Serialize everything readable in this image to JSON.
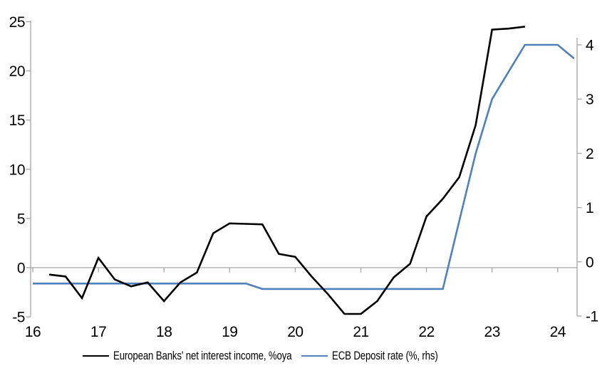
{
  "chart_data": {
    "type": "line",
    "title": "",
    "grid": "none",
    "legend_position": "bottom",
    "x_axis": {
      "tick_labels": [
        "16",
        "17",
        "18",
        "19",
        "20",
        "21",
        "22",
        "23",
        "24"
      ],
      "tick_values": [
        16,
        17,
        18,
        19,
        20,
        21,
        22,
        23,
        24
      ],
      "range": [
        15.95,
        24.3
      ]
    },
    "y_axis_left": {
      "tick_labels": [
        "-5",
        "0",
        "5",
        "10",
        "15",
        "20",
        "25"
      ],
      "tick_values": [
        -5,
        0,
        5,
        10,
        15,
        20,
        25
      ],
      "range": [
        -5,
        25
      ],
      "zero_line": true
    },
    "y_axis_right": {
      "tick_labels": [
        "-1",
        "0",
        "1",
        "2",
        "3",
        "4"
      ],
      "tick_values": [
        -1,
        0,
        1,
        2,
        3,
        4
      ],
      "range": [
        -1,
        4.5
      ]
    },
    "series": [
      {
        "name": "European Banks' net interest income, %oya",
        "axis": "left",
        "color": "#000000",
        "x": [
          16.25,
          16.5,
          16.75,
          17.0,
          17.25,
          17.5,
          17.75,
          18.0,
          18.25,
          18.5,
          18.75,
          19.0,
          19.25,
          19.5,
          19.75,
          20.0,
          20.25,
          20.5,
          20.75,
          21.0,
          21.25,
          21.5,
          21.75,
          22.0,
          22.25,
          22.5,
          22.75,
          23.0,
          23.25,
          23.5
        ],
        "values": [
          -0.7,
          -0.9,
          -3.1,
          1.0,
          -1.2,
          -1.9,
          -1.5,
          -3.4,
          -1.5,
          -0.5,
          3.5,
          4.5,
          4.45,
          4.4,
          1.4,
          1.1,
          -0.9,
          -2.7,
          -4.7,
          -4.7,
          -3.4,
          -1.0,
          0.4,
          5.2,
          7.0,
          9.2,
          14.5,
          24.2,
          24.3,
          24.5
        ]
      },
      {
        "name": "ECB Deposit rate (%, rhs)",
        "axis": "right",
        "color": "#4f81bd",
        "x": [
          16.0,
          16.25,
          16.5,
          16.75,
          17.0,
          17.25,
          17.5,
          17.75,
          18.0,
          18.25,
          18.5,
          18.75,
          19.0,
          19.25,
          19.5,
          19.75,
          20.0,
          20.25,
          20.5,
          20.75,
          21.0,
          21.25,
          21.5,
          21.75,
          22.0,
          22.25,
          22.5,
          22.75,
          23.0,
          23.25,
          23.5,
          23.75,
          24.0,
          24.25
        ],
        "values": [
          -0.4,
          -0.4,
          -0.4,
          -0.4,
          -0.4,
          -0.4,
          -0.4,
          -0.4,
          -0.4,
          -0.4,
          -0.4,
          -0.4,
          -0.4,
          -0.4,
          -0.5,
          -0.5,
          -0.5,
          -0.5,
          -0.5,
          -0.5,
          -0.5,
          -0.5,
          -0.5,
          -0.5,
          -0.5,
          -0.5,
          0.75,
          2.0,
          3.0,
          3.5,
          4.0,
          4.0,
          4.0,
          3.75
        ]
      }
    ]
  },
  "legend": {
    "items": [
      {
        "label": "European Banks' net interest income, %oya",
        "color": "#000000"
      },
      {
        "label": "ECB Deposit rate (%, rhs)",
        "color": "#4f81bd"
      }
    ]
  },
  "colors": {
    "axis": "#a6a6a6",
    "zero_line": "#a6a6a6",
    "tick_text": "#000000",
    "nii_line": "#000000",
    "ecb_line": "#4f81bd",
    "background": "#ffffff"
  }
}
